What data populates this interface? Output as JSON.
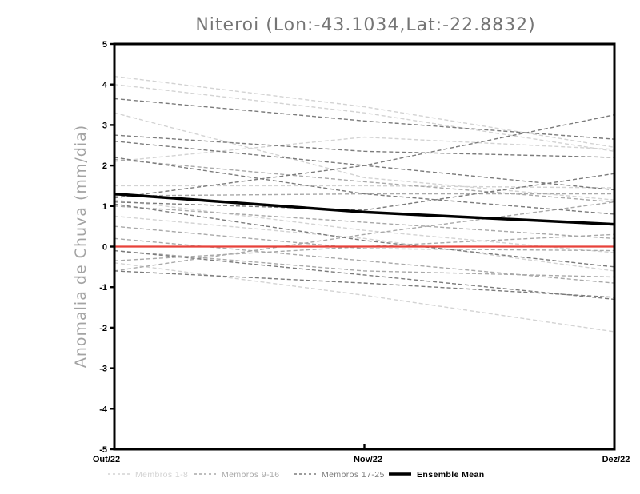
{
  "page": {
    "background": "#ffffff"
  },
  "chart_data": {
    "type": "line",
    "title": "Niteroi (Lon:-43.1034,Lat:-22.8832)",
    "ylabel": "Anomalia de Chuva (mm/dia)",
    "xlabel": "",
    "x_categories": [
      "Out/22",
      "Nov/22",
      "Dez/22"
    ],
    "ylim": [
      -5,
      5
    ],
    "yticks": [
      5,
      4,
      3,
      2,
      1,
      0,
      -1,
      -2,
      -3,
      -4,
      -5
    ],
    "grid": false,
    "legend_position": "bottom",
    "line_style": "dashed-members-solid-mean",
    "zero_line": {
      "name": "zero-reference",
      "color": "#e8423a",
      "values": [
        0,
        0,
        0
      ]
    },
    "groups": [
      {
        "name": "Membros 1-8",
        "color": "#d3d3d3",
        "members": [
          [
            4.2,
            3.45,
            2.45
          ],
          [
            4.0,
            3.3,
            2.35
          ],
          [
            3.3,
            1.7,
            1.15
          ],
          [
            2.1,
            2.7,
            2.4
          ],
          [
            1.5,
            1.5,
            1.45
          ],
          [
            1.15,
            0.4,
            -0.15
          ],
          [
            0.75,
            0.2,
            -0.6
          ],
          [
            -0.4,
            -1.2,
            -2.1
          ]
        ]
      },
      {
        "name": "Membros 9-16",
        "color": "#a9a9a9",
        "members": [
          [
            2.15,
            1.6,
            1.1
          ],
          [
            1.25,
            1.3,
            1.3
          ],
          [
            1.0,
            0.6,
            0.2
          ],
          [
            0.5,
            -0.05,
            -0.1
          ],
          [
            0.2,
            -0.35,
            -0.9
          ],
          [
            -0.1,
            -0.6,
            -0.75
          ],
          [
            -0.35,
            0.0,
            0.3
          ],
          [
            -0.6,
            0.3,
            1.1
          ]
        ]
      },
      {
        "name": "Membros 17-25",
        "color": "#7b7b7b",
        "members": [
          [
            3.65,
            3.1,
            2.65
          ],
          [
            2.75,
            2.35,
            2.2
          ],
          [
            2.6,
            2.0,
            1.4
          ],
          [
            2.2,
            1.3,
            0.8
          ],
          [
            1.2,
            2.0,
            3.25
          ],
          [
            1.1,
            0.9,
            1.8
          ],
          [
            1.05,
            0.15,
            -0.5
          ],
          [
            -0.1,
            -0.7,
            -1.3
          ],
          [
            -0.6,
            -0.9,
            -1.25
          ]
        ]
      }
    ],
    "ensemble_mean": {
      "name": "Ensemble Mean",
      "color": "#000000",
      "values": [
        1.3,
        0.85,
        0.55
      ]
    }
  }
}
